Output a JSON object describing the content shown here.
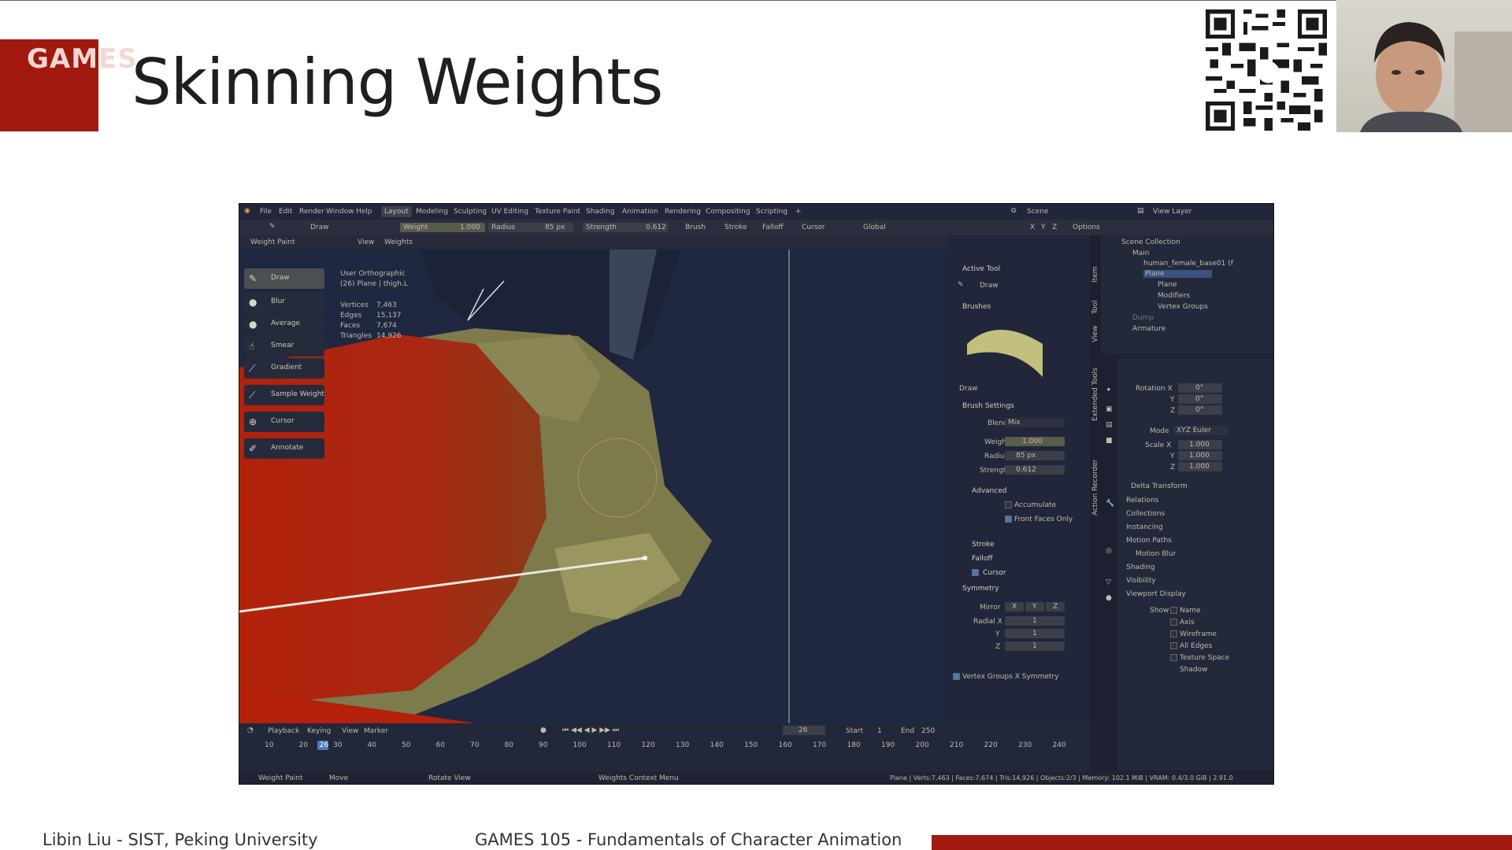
{
  "slide": {
    "logo_text": "GAMES",
    "title": "Skinning Weights",
    "footer_left": "Libin Liu - SIST, Peking University",
    "footer_center": "GAMES 105 - Fundamentals of Character Animation",
    "accent_color": "#a1190f"
  },
  "blender": {
    "menu": [
      "File",
      "Edit",
      "Render",
      "Window",
      "Help"
    ],
    "workspaces": [
      "Layout",
      "Modeling",
      "Sculpting",
      "UV Editing",
      "Texture Paint",
      "Shading",
      "Animation",
      "Rendering",
      "Compositing",
      "Scripting",
      "+"
    ],
    "scene_label": "Scene",
    "view_layer_label": "View Layer",
    "tool_header": {
      "brush_name": "Draw",
      "weight_label": "Weight",
      "weight_value": "1.000",
      "radius_label": "Radius",
      "radius_value": "85 px",
      "strength_label": "Strength",
      "strength_value": "0.612",
      "dropdowns": [
        "Brush",
        "Stroke",
        "Falloff",
        "Cursor"
      ],
      "orientation": "Global",
      "axes": [
        "X",
        "Y",
        "Z"
      ],
      "options_label": "Options"
    },
    "viewport_header": {
      "mode": "Weight Paint",
      "menus": [
        "View",
        "Weights"
      ]
    },
    "toolbar": [
      {
        "label": "Draw",
        "icon": "brush-icon",
        "active": true
      },
      {
        "label": "Blur",
        "icon": "drop-icon",
        "active": false
      },
      {
        "label": "Average",
        "icon": "drop-icon",
        "active": false
      },
      {
        "label": "Smear",
        "icon": "finger-icon",
        "active": false
      },
      {
        "label": "Gradient",
        "icon": "gradient-icon",
        "active": false
      },
      {
        "label": "Sample Weight",
        "icon": "eyedropper-icon",
        "active": false
      },
      {
        "label": "Cursor",
        "icon": "cursor-icon",
        "active": false
      },
      {
        "label": "Annotate",
        "icon": "pencil-icon",
        "active": false
      }
    ],
    "viewport_info": {
      "view": "User Orthographic",
      "object": "(26) Plane | thigh.L",
      "stats": [
        {
          "label": "Vertices",
          "value": "7,463"
        },
        {
          "label": "Edges",
          "value": "15,137"
        },
        {
          "label": "Faces",
          "value": "7,674"
        },
        {
          "label": "Triangles",
          "value": "14,926"
        }
      ]
    },
    "sidebar": {
      "tabs": [
        "Item",
        "Tool",
        "View",
        "Extended Tools",
        "Action Recorder"
      ],
      "active_tool_header": "Active Tool",
      "active_tool": "Draw",
      "brushes_header": "Brushes",
      "brush_name": "Draw",
      "brush_settings_header": "Brush Settings",
      "blend_label": "Blend",
      "blend_value": "Mix",
      "weight_label": "Weight",
      "weight_value": "1.000",
      "radius_label": "Radius",
      "radius_value": "85 px",
      "strength_label": "Strength",
      "strength_value": "0.612",
      "advanced_header": "Advanced",
      "accumulate_label": "Accumulate",
      "front_faces_label": "Front Faces Only",
      "stroke_header": "Stroke",
      "falloff_header": "Falloff",
      "cursor_header": "Cursor",
      "symmetry_header": "Symmetry",
      "mirror_label": "Mirror",
      "mirror_axes": [
        "X",
        "Y",
        "Z"
      ],
      "radial_label": "Radial X",
      "radial_y_label": "Y",
      "radial_z_label": "Z",
      "radial_x": "1",
      "radial_y": "1",
      "radial_z": "1",
      "vertex_groups_sym": "Vertex Groups X Symmetry"
    },
    "outliner": {
      "header": "Scene Collection",
      "items": [
        {
          "label": "Main",
          "indent": 0
        },
        {
          "label": "human_female_base01 (f",
          "indent": 1
        },
        {
          "label": "Plane",
          "indent": 1
        },
        {
          "label": "Plane",
          "indent": 2
        },
        {
          "label": "Modifiers",
          "indent": 2
        },
        {
          "label": "Vertex Groups",
          "indent": 2
        },
        {
          "label": "Dump",
          "indent": 0
        },
        {
          "label": "Armature",
          "indent": 0
        }
      ]
    },
    "properties": {
      "rotation_label": "Rotation X",
      "rotation_y_label": "Y",
      "rotation_z_label": "Z",
      "rotation_x": "0°",
      "rotation_y": "0°",
      "rotation_z": "0°",
      "mode_label": "Mode",
      "mode_value": "XYZ Euler",
      "scale_label": "Scale X",
      "scale_y_label": "Y",
      "scale_z_label": "Z",
      "scale_x": "1.000",
      "scale_y": "1.000",
      "scale_z": "1.000",
      "delta_transform": "Delta Transform",
      "panels": [
        "Relations",
        "Collections",
        "Instancing",
        "Motion Paths",
        "Motion Blur",
        "Shading",
        "Visibility",
        "Viewport Display"
      ],
      "show_label": "Show",
      "show_items": [
        "Name",
        "Axis",
        "Wireframe",
        "All Edges",
        "Texture Space",
        "Shadow"
      ]
    },
    "timeline": {
      "menus": [
        "Playback",
        "Keying",
        "View",
        "Marker"
      ],
      "current_frame": "26",
      "start_label": "Start",
      "start_value": "1",
      "end_label": "End",
      "end_value": "250",
      "ticks": [
        "10",
        "20",
        "26",
        "30",
        "40",
        "50",
        "60",
        "70",
        "80",
        "90",
        "100",
        "110",
        "120",
        "130",
        "140",
        "150",
        "160",
        "170",
        "180",
        "190",
        "200",
        "210",
        "220",
        "230",
        "240"
      ]
    },
    "statusbar": {
      "items": [
        "Weight Paint",
        "Move",
        "Rotate View",
        "Weights Context Menu"
      ],
      "stats": "Plane | Verts:7,463 | Faces:7,674 | Tris:14,926 | Objects:2/3 | Memory: 102.1 MiB | VRAM: 0.4/3.0 GiB | 2.91.0"
    }
  }
}
